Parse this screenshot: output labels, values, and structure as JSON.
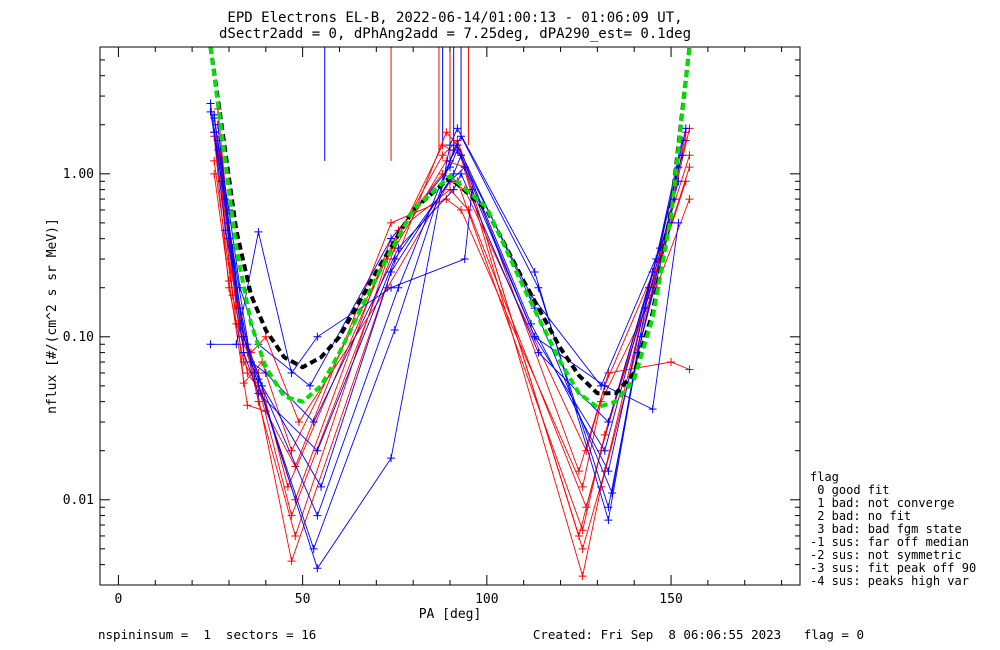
{
  "title_line1": "EPD Electrons EL-B, 2022-06-14/01:00:13 - 01:06:09 UT,",
  "title_line2": "dSectr2add = 0, dPhAng2add = 7.25deg, dPA290_est=   0.1deg",
  "legend": {
    "title": "flag",
    "items": [
      " 0 good fit",
      " 1 bad: not converge",
      " 2 bad: no fit",
      " 3 bad: bad fgm state",
      "-1 sus: far off median",
      "-2 sus: not symmetric",
      "-3 sus: fit peak off 90",
      "-4 sus: peaks high var"
    ]
  },
  "footer": {
    "left": "nspininsum =  1  sectors = 16",
    "right": "Created: Fri Sep  8 06:06:55 2023   flag = 0"
  },
  "chart_data": {
    "type": "line",
    "title": "EPD Electrons EL-B, 2022-06-14/01:00:13 - 01:06:09 UT, dSectr2add = 0, dPhAng2add = 7.25deg, dPA290_est=   0.1deg",
    "xlabel": "PA [deg]",
    "ylabel": "nflux [#/(cm^2 s sr MeV)]",
    "xlim": [
      -5,
      185
    ],
    "ylim": [
      0.003,
      6
    ],
    "yscale": "log",
    "xticks": [
      0,
      50,
      100,
      150
    ],
    "yticks": [
      0.01,
      0.1,
      1.0
    ],
    "ytick_labels": [
      "0.01",
      "0.10",
      "1.00"
    ],
    "grid": false,
    "legend_position": "outside right, bottom",
    "marker": "+",
    "colors": {
      "spin_red": "#ff0000",
      "spin_blue": "#0000ff",
      "fit_black": "#000000",
      "fit_green": "#00e000"
    },
    "pa_sectors": [
      26,
      29,
      32,
      35,
      38,
      47,
      55,
      74,
      90,
      95,
      113,
      126,
      131,
      133,
      143,
      155
    ],
    "series": [
      {
        "color": "red",
        "x": [
          26,
          30,
          34,
          37,
          47,
          74,
          89,
          92,
          126,
          131,
          145,
          155
        ],
        "y": [
          2.3,
          0.3,
          0.1,
          0.055,
          0.0042,
          0.25,
          1.8,
          1.5,
          0.0034,
          0.012,
          0.2,
          1.9
        ]
      },
      {
        "color": "red",
        "x": [
          27,
          31,
          35,
          38,
          48,
          73,
          88,
          93,
          126,
          132,
          146,
          154
        ],
        "y": [
          2.0,
          0.25,
          0.08,
          0.04,
          0.006,
          0.3,
          1.5,
          1.3,
          0.005,
          0.015,
          0.3,
          1.6
        ]
      },
      {
        "color": "red",
        "x": [
          26,
          30,
          34,
          38,
          47,
          75,
          89,
          94,
          125,
          131,
          145,
          155
        ],
        "y": [
          1.7,
          0.2,
          0.07,
          0.05,
          0.008,
          0.35,
          1.2,
          1.1,
          0.006,
          0.02,
          0.25,
          1.3
        ]
      },
      {
        "color": "red",
        "x": [
          27,
          32,
          35,
          39,
          48,
          74,
          88,
          92,
          126,
          132,
          147,
          155
        ],
        "y": [
          1.4,
          0.15,
          0.06,
          0.045,
          0.01,
          0.4,
          1.0,
          0.9,
          0.0065,
          0.025,
          0.3,
          1.1
        ]
      },
      {
        "color": "red",
        "x": [
          26,
          31,
          34,
          38,
          46,
          76,
          90,
          95,
          127,
          133,
          144,
          154
        ],
        "y": [
          1.2,
          0.18,
          0.09,
          0.06,
          0.012,
          0.45,
          0.8,
          0.6,
          0.009,
          0.03,
          0.18,
          0.9
        ]
      },
      {
        "color": "red",
        "x": [
          26,
          30,
          35,
          40,
          48,
          74,
          89,
          93,
          126,
          131,
          146,
          155
        ],
        "y": [
          1.0,
          0.22,
          0.038,
          0.035,
          0.016,
          0.5,
          0.7,
          0.6,
          0.012,
          0.04,
          0.2,
          0.7
        ]
      },
      {
        "color": "red",
        "x": [
          27,
          31,
          34,
          39,
          47,
          75,
          88,
          92,
          125,
          132,
          148,
          154
        ],
        "y": [
          2.5,
          0.28,
          0.052,
          0.07,
          0.02,
          0.38,
          1.3,
          1.6,
          0.015,
          0.05,
          0.35,
          1.8
        ]
      },
      {
        "color": "red",
        "x": [
          26,
          32,
          36,
          40,
          49,
          73,
          90,
          94,
          127,
          133,
          150,
          155
        ],
        "y": [
          1.8,
          0.12,
          0.08,
          0.1,
          0.03,
          0.2,
          0.9,
          0.8,
          0.02,
          0.06,
          0.07,
          0.063
        ]
      },
      {
        "color": "blue",
        "x": [
          25,
          28,
          33,
          36,
          54,
          74,
          90,
          92,
          113,
          133,
          141,
          150
        ],
        "y": [
          2.7,
          0.9,
          0.15,
          0.07,
          0.0038,
          0.018,
          1.5,
          1.9,
          0.25,
          0.0075,
          0.08,
          0.5
        ]
      },
      {
        "color": "blue",
        "x": [
          26,
          29,
          33,
          37,
          53,
          75,
          91,
          93,
          114,
          133,
          142,
          151
        ],
        "y": [
          2.3,
          0.7,
          0.12,
          0.06,
          0.005,
          0.11,
          1.4,
          1.7,
          0.2,
          0.009,
          0.1,
          0.7
        ]
      },
      {
        "color": "blue",
        "x": [
          27,
          30,
          34,
          38,
          54,
          76,
          90,
          92,
          113,
          134,
          143,
          152
        ],
        "y": [
          2.0,
          0.5,
          0.1,
          0.055,
          0.008,
          0.2,
          1.2,
          1.5,
          0.15,
          0.011,
          0.15,
          0.9
        ]
      },
      {
        "color": "blue",
        "x": [
          26,
          29,
          35,
          39,
          55,
          74,
          91,
          93,
          112,
          133,
          144,
          152
        ],
        "y": [
          1.8,
          0.45,
          0.09,
          0.05,
          0.012,
          0.25,
          1.0,
          1.3,
          0.12,
          0.015,
          0.2,
          1.1
        ]
      },
      {
        "color": "blue",
        "x": [
          27,
          30,
          34,
          38,
          54,
          75,
          90,
          94,
          113,
          132,
          145,
          153
        ],
        "y": [
          1.6,
          0.4,
          0.08,
          0.045,
          0.02,
          0.3,
          0.9,
          1.1,
          0.1,
          0.02,
          0.25,
          1.3
        ]
      },
      {
        "color": "blue",
        "x": [
          25,
          31,
          36,
          40,
          53,
          76,
          91,
          93,
          114,
          133,
          146,
          153
        ],
        "y": [
          2.4,
          0.35,
          0.07,
          0.06,
          0.03,
          0.35,
          0.8,
          1.0,
          0.08,
          0.03,
          0.3,
          1.6
        ]
      },
      {
        "color": "blue",
        "x": [
          26,
          30,
          33,
          38,
          52,
          74,
          90,
          92,
          112,
          131,
          147,
          154
        ],
        "y": [
          2.2,
          0.6,
          0.2,
          0.09,
          0.05,
          0.4,
          1.1,
          1.4,
          0.18,
          0.05,
          0.35,
          1.9
        ]
      },
      {
        "color": "blue",
        "x": [
          25,
          32,
          38,
          47,
          54,
          74,
          94,
          96,
          113,
          132,
          145,
          152
        ],
        "y": [
          0.09,
          0.09,
          0.44,
          0.06,
          0.1,
          0.2,
          0.3,
          0.8,
          0.1,
          0.05,
          0.036,
          0.5
        ]
      }
    ],
    "fit_curves": [
      {
        "color": "black",
        "style": "dashed",
        "x": [
          25,
          28,
          32,
          36,
          40,
          45,
          50,
          55,
          60,
          70,
          80,
          90,
          100,
          110,
          120,
          125,
          130,
          135,
          140,
          145,
          150,
          155
        ],
        "y": [
          6,
          2.0,
          0.45,
          0.18,
          0.11,
          0.075,
          0.065,
          0.075,
          0.1,
          0.25,
          0.6,
          0.95,
          0.6,
          0.22,
          0.085,
          0.058,
          0.045,
          0.045,
          0.06,
          0.14,
          0.6,
          6
        ]
      },
      {
        "color": "green",
        "style": "dashed",
        "x": [
          25,
          28,
          32,
          36,
          40,
          45,
          50,
          55,
          60,
          70,
          80,
          90,
          100,
          110,
          120,
          125,
          130,
          135,
          140,
          145,
          150,
          155
        ],
        "y": [
          6,
          1.8,
          0.35,
          0.12,
          0.065,
          0.043,
          0.04,
          0.05,
          0.08,
          0.23,
          0.6,
          0.97,
          0.62,
          0.2,
          0.07,
          0.045,
          0.037,
          0.04,
          0.055,
          0.13,
          0.55,
          6
        ]
      }
    ],
    "vertical_spikes": [
      {
        "color": "blue",
        "x": 56,
        "y_low": 1.2
      },
      {
        "color": "red",
        "x": 74,
        "y_low": 1.2
      },
      {
        "color": "red",
        "x": 87,
        "y_low": 1.4
      },
      {
        "color": "red",
        "x": 90,
        "y_low": 1.2
      },
      {
        "color": "blue",
        "x": 88,
        "y_low": 1.5
      },
      {
        "color": "blue",
        "x": 91,
        "y_low": 1.3
      },
      {
        "color": "blue",
        "x": 93,
        "y_low": 1.6
      },
      {
        "color": "red",
        "x": 95,
        "y_low": 1.5
      }
    ]
  }
}
